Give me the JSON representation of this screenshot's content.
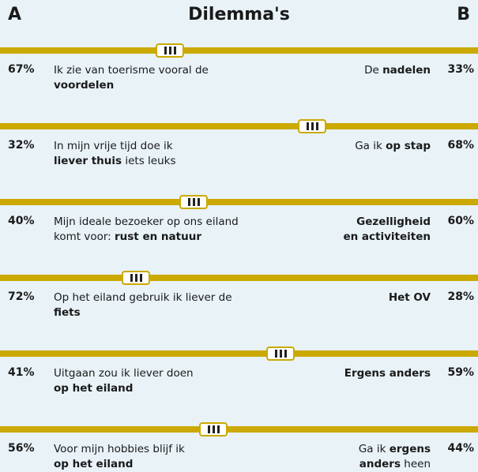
{
  "header": {
    "left": "A",
    "title": "Dilemma's",
    "right": "B"
  },
  "items": [
    {
      "a_pct": "67%",
      "a_lines": [
        [
          {
            "t": "Ik zie van toerisme vooral de"
          }
        ],
        [
          {
            "t": "voordelen",
            "b": true
          }
        ]
      ],
      "b_lines": [
        [
          {
            "t": "De "
          },
          {
            "t": "nadelen",
            "b": true
          }
        ]
      ],
      "b_pct": "33%"
    },
    {
      "a_pct": "32%",
      "a_lines": [
        [
          {
            "t": "In mijn vrije tijd doe ik"
          }
        ],
        [
          {
            "t": "liever thuis",
            "b": true
          },
          {
            "t": " iets leuks"
          }
        ]
      ],
      "b_lines": [
        [
          {
            "t": "Ga ik "
          },
          {
            "t": "op stap",
            "b": true
          }
        ]
      ],
      "b_pct": "68%"
    },
    {
      "a_pct": "40%",
      "a_lines": [
        [
          {
            "t": "Mijn ideale bezoeker op ons eiland"
          }
        ],
        [
          {
            "t": "komt voor: "
          },
          {
            "t": "rust en natuur",
            "b": true
          }
        ]
      ],
      "b_lines": [
        [
          {
            "t": "Gezelligheid",
            "b": true
          }
        ],
        [
          {
            "t": "en activiteiten",
            "b": true
          }
        ]
      ],
      "b_pct": "60%"
    },
    {
      "a_pct": "72%",
      "a_lines": [
        [
          {
            "t": "Op het eiland gebruik ik liever de"
          }
        ],
        [
          {
            "t": "fiets",
            "b": true
          }
        ]
      ],
      "b_lines": [
        [
          {
            "t": "Het OV",
            "b": true
          }
        ]
      ],
      "b_pct": "28%"
    },
    {
      "a_pct": "41%",
      "a_lines": [
        [
          {
            "t": "Uitgaan zou ik liever doen"
          }
        ],
        [
          {
            "t": "op het eiland",
            "b": true
          }
        ]
      ],
      "b_lines": [
        [
          {
            "t": "Ergens anders",
            "b": true
          }
        ]
      ],
      "b_pct": "59%"
    },
    {
      "a_pct": "56%",
      "a_lines": [
        [
          {
            "t": "Voor mijn hobbies blijf ik"
          }
        ],
        [
          {
            "t": "op het eiland",
            "b": true
          }
        ]
      ],
      "b_lines": [
        [
          {
            "t": "Ga ik "
          },
          {
            "t": "ergens",
            "b": true
          }
        ],
        [
          {
            "t": "anders",
            "b": true
          },
          {
            "t": " heen"
          }
        ]
      ],
      "b_pct": "44%"
    }
  ]
}
